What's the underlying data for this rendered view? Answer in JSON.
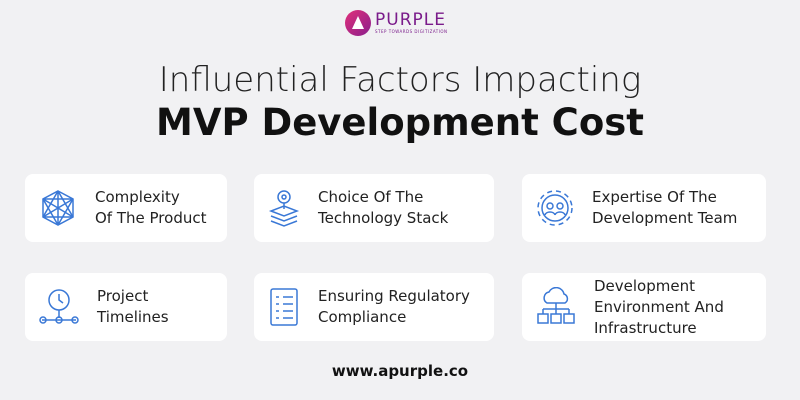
{
  "logo": {
    "name": "PURPLE",
    "tagline": "STEP TOWARDS DIGITIZATION"
  },
  "title": {
    "line1": "Influential Factors Impacting",
    "line2": "MVP Development Cost"
  },
  "colors": {
    "icon": "#3a78d6",
    "logo": "#7a1b8a"
  },
  "factors": [
    {
      "label": "Complexity\nOf The Product",
      "icon": "network-hexagon-icon"
    },
    {
      "label": "Choice Of The\nTechnology Stack",
      "icon": "layers-stack-icon"
    },
    {
      "label": "Expertise Of The\nDevelopment Team",
      "icon": "team-gear-icon"
    },
    {
      "label": "Project\nTimelines",
      "icon": "clock-timeline-icon"
    },
    {
      "label": "Ensuring Regulatory\nCompliance",
      "icon": "checklist-icon"
    },
    {
      "label": "Development\nEnvironment And\nInfrastructure",
      "icon": "cloud-infrastructure-icon"
    }
  ],
  "footer": {
    "url": "www.apurple.co"
  }
}
